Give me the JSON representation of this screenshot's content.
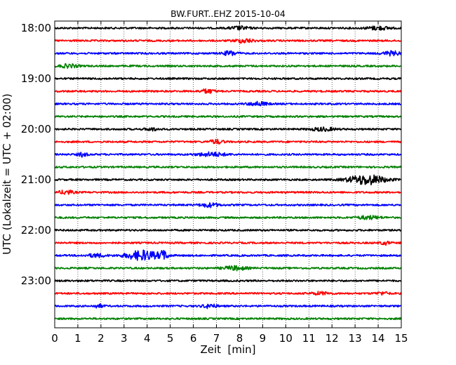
{
  "chart_data": {
    "type": "line",
    "title": "BW.FURT..EHZ 2015-10-04",
    "xlabel": "Zeit  [min]",
    "ylabel": "UTC (Lokalzeit = UTC + 02:00)",
    "xlim": [
      0,
      15
    ],
    "x_ticks": [
      "0",
      "1",
      "2",
      "3",
      "4",
      "5",
      "6",
      "7",
      "8",
      "9",
      "10",
      "11",
      "12",
      "13",
      "14",
      "15"
    ],
    "y_tick_labels": [
      "18:00",
      "19:00",
      "20:00",
      "21:00",
      "22:00",
      "23:00"
    ],
    "grid": "vertical dotted",
    "trace_colors": [
      "#000000",
      "#ff0000",
      "#0000ff",
      "#008000"
    ],
    "series": [
      {
        "start": "18:00",
        "bursts": [
          [
            8.0,
            0.4,
            0.5
          ],
          [
            14.0,
            0.5,
            0.5
          ]
        ]
      },
      {
        "start": "18:15",
        "bursts": [
          [
            8.2,
            0.4,
            0.6
          ]
        ]
      },
      {
        "start": "18:30",
        "bursts": [
          [
            7.6,
            0.3,
            0.7
          ],
          [
            14.6,
            0.4,
            0.6
          ]
        ]
      },
      {
        "start": "18:45",
        "bursts": [
          [
            0.6,
            0.4,
            0.5
          ]
        ]
      },
      {
        "start": "19:00",
        "bursts": []
      },
      {
        "start": "19:15",
        "bursts": [
          [
            6.6,
            0.3,
            0.6
          ]
        ]
      },
      {
        "start": "19:30",
        "bursts": [
          [
            8.8,
            0.4,
            0.6
          ]
        ]
      },
      {
        "start": "19:45",
        "bursts": []
      },
      {
        "start": "20:00",
        "bursts": [
          [
            4.2,
            0.3,
            0.4
          ],
          [
            11.6,
            0.5,
            0.5
          ]
        ]
      },
      {
        "start": "20:15",
        "bursts": [
          [
            7.0,
            0.3,
            0.6
          ]
        ]
      },
      {
        "start": "20:30",
        "bursts": [
          [
            1.2,
            0.2,
            0.6
          ],
          [
            6.8,
            0.6,
            0.6
          ]
        ]
      },
      {
        "start": "20:45",
        "bursts": []
      },
      {
        "start": "21:00",
        "bursts": [
          [
            13.5,
            0.8,
            1.5
          ]
        ]
      },
      {
        "start": "21:15",
        "bursts": [
          [
            0.5,
            0.3,
            0.6
          ]
        ]
      },
      {
        "start": "21:30",
        "bursts": [
          [
            6.7,
            0.4,
            0.6
          ]
        ]
      },
      {
        "start": "21:45",
        "bursts": [
          [
            13.6,
            0.5,
            0.5
          ]
        ]
      },
      {
        "start": "22:00",
        "bursts": []
      },
      {
        "start": "22:15",
        "bursts": [
          [
            14.3,
            0.2,
            0.5
          ]
        ]
      },
      {
        "start": "22:30",
        "bursts": [
          [
            3.8,
            0.7,
            1.5
          ],
          [
            4.7,
            0.2,
            1.2
          ],
          [
            1.8,
            0.4,
            0.5
          ]
        ]
      },
      {
        "start": "22:45",
        "bursts": [
          [
            7.8,
            0.5,
            0.6
          ]
        ]
      },
      {
        "start": "23:00",
        "bursts": []
      },
      {
        "start": "23:15",
        "bursts": [
          [
            11.5,
            0.4,
            0.4
          ],
          [
            14.2,
            0.3,
            0.4
          ]
        ]
      },
      {
        "start": "23:30",
        "bursts": [
          [
            1.9,
            0.2,
            0.5
          ],
          [
            6.7,
            0.3,
            0.6
          ]
        ]
      },
      {
        "start": "23:45",
        "bursts": []
      }
    ]
  }
}
